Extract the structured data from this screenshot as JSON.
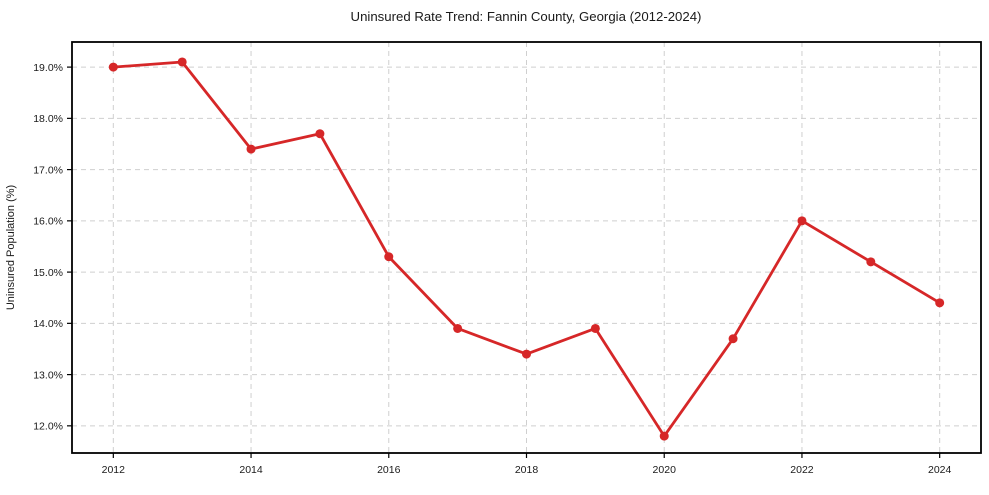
{
  "chart_data": {
    "type": "line",
    "title": "Uninsured Rate Trend: Fannin County, Georgia (2012-2024)",
    "xlabel": "",
    "ylabel": "Uninsured Population (%)",
    "x": [
      2012,
      2013,
      2014,
      2015,
      2016,
      2017,
      2018,
      2019,
      2020,
      2021,
      2022,
      2023,
      2024
    ],
    "series": [
      {
        "name": "Uninsured rate",
        "values": [
          19.0,
          19.1,
          17.4,
          17.7,
          15.3,
          13.9,
          13.4,
          13.9,
          11.8,
          13.7,
          16.0,
          15.2,
          14.4
        ],
        "color": "#d62728"
      }
    ],
    "x_ticks": [
      2012,
      2014,
      2016,
      2018,
      2020,
      2022,
      2024
    ],
    "x_tick_labels": [
      "2012",
      "2014",
      "2016",
      "2018",
      "2020",
      "2022",
      "2024"
    ],
    "y_ticks": [
      12,
      13,
      14,
      15,
      16,
      17,
      18,
      19
    ],
    "y_tick_labels": [
      "12.0%",
      "13.0%",
      "14.0%",
      "15.0%",
      "16.0%",
      "17.0%",
      "18.0%",
      "19.0%"
    ],
    "xlim": [
      2011.4,
      2024.6
    ],
    "ylim": [
      11.47,
      19.49
    ],
    "grid": true,
    "grid_style": "dashed",
    "legend": false,
    "colors": {
      "line": "#d62728",
      "grid": "#cfcfcf",
      "spine": "#000000",
      "text": "#1a1a1a",
      "background": "#ffffff"
    }
  }
}
